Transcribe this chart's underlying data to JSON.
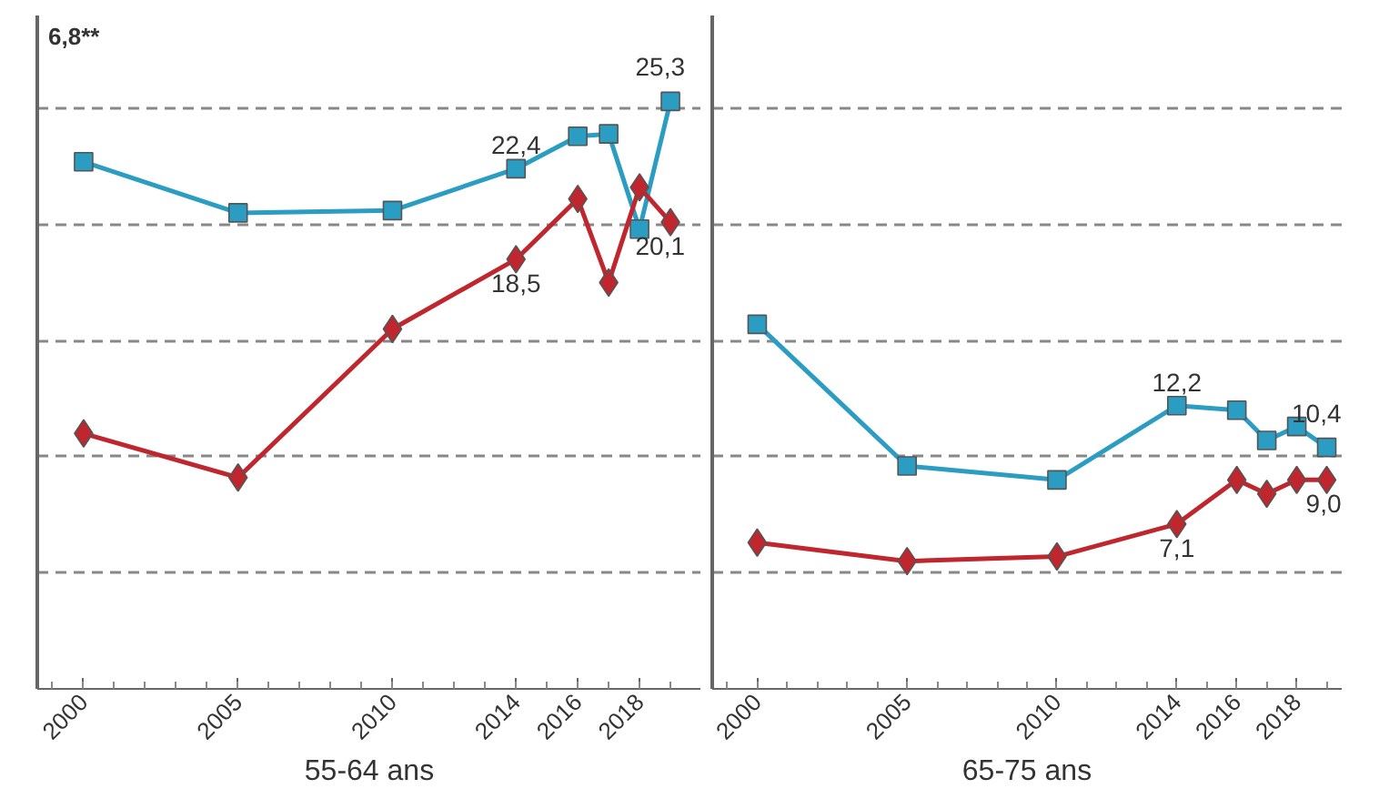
{
  "chart_data": [
    {
      "type": "line",
      "xlabel": "55-64 ans",
      "annotations": [
        "6,8**"
      ],
      "xlim": [
        1998.5,
        2020
      ],
      "xticks": [
        2000,
        2005,
        2010,
        2014,
        2016,
        2018
      ],
      "ylim": [
        0,
        29
      ],
      "yticks": [
        {
          "value": 5,
          "label": null
        },
        {
          "value": 10,
          "label": null
        },
        {
          "value": 15,
          "label": null
        },
        {
          "value": 20,
          "label": null
        },
        {
          "value": 25,
          "label": null
        }
      ],
      "grid": "y",
      "tick_labels": "x",
      "line_style": "solid",
      "series": [
        {
          "color": "#2b9cc2",
          "marker": "square",
          "x": [
            2000,
            2005,
            2010,
            2014,
            2016,
            2017,
            2018,
            2019
          ],
          "values": [
            22.7,
            20.5,
            20.6,
            22.4,
            23.8,
            23.9,
            19.8,
            25.3
          ],
          "value_labels": [
            null,
            null,
            null,
            "22,4",
            null,
            null,
            null,
            "25,3"
          ]
        },
        {
          "color": "#c0262d",
          "marker": "diamond",
          "x": [
            2000,
            2005,
            2010,
            2014,
            2016,
            2017,
            2018,
            2019
          ],
          "values": [
            11.0,
            9.1,
            15.5,
            18.5,
            21.1,
            17.5,
            21.6,
            20.1
          ],
          "value_labels": [
            null,
            null,
            null,
            "18,5",
            null,
            null,
            null,
            "20,1"
          ]
        }
      ]
    },
    {
      "type": "line",
      "xlabel": "65-75 ans",
      "xlim": [
        1998.5,
        2019.5
      ],
      "xticks": [
        2000,
        2005,
        2010,
        2014,
        2016,
        2018
      ],
      "ylim": [
        0,
        29
      ],
      "yticks": [
        {
          "value": 5,
          "label": null
        },
        {
          "value": 10,
          "label": null
        },
        {
          "value": 15,
          "label": null
        },
        {
          "value": 20,
          "label": null
        },
        {
          "value": 25,
          "label": null
        }
      ],
      "grid": "y",
      "tick_labels": "x",
      "line_style": "solid",
      "series": [
        {
          "color": "#2b9cc2",
          "marker": "square",
          "x": [
            2000,
            2005,
            2010,
            2014,
            2016,
            2017,
            2018,
            2019
          ],
          "values": [
            15.7,
            9.6,
            9.0,
            12.2,
            12.0,
            10.7,
            11.3,
            10.4
          ],
          "value_labels": [
            null,
            null,
            null,
            "12,2",
            null,
            null,
            null,
            "10,4"
          ]
        },
        {
          "color": "#c0262d",
          "marker": "diamond",
          "x": [
            2000,
            2005,
            2010,
            2014,
            2016,
            2017,
            2018,
            2019
          ],
          "values": [
            6.3,
            5.5,
            5.7,
            7.1,
            9.0,
            8.4,
            9.0,
            9.0
          ],
          "value_labels": [
            null,
            null,
            null,
            "7,1",
            null,
            null,
            null,
            "9,0"
          ]
        }
      ]
    }
  ]
}
